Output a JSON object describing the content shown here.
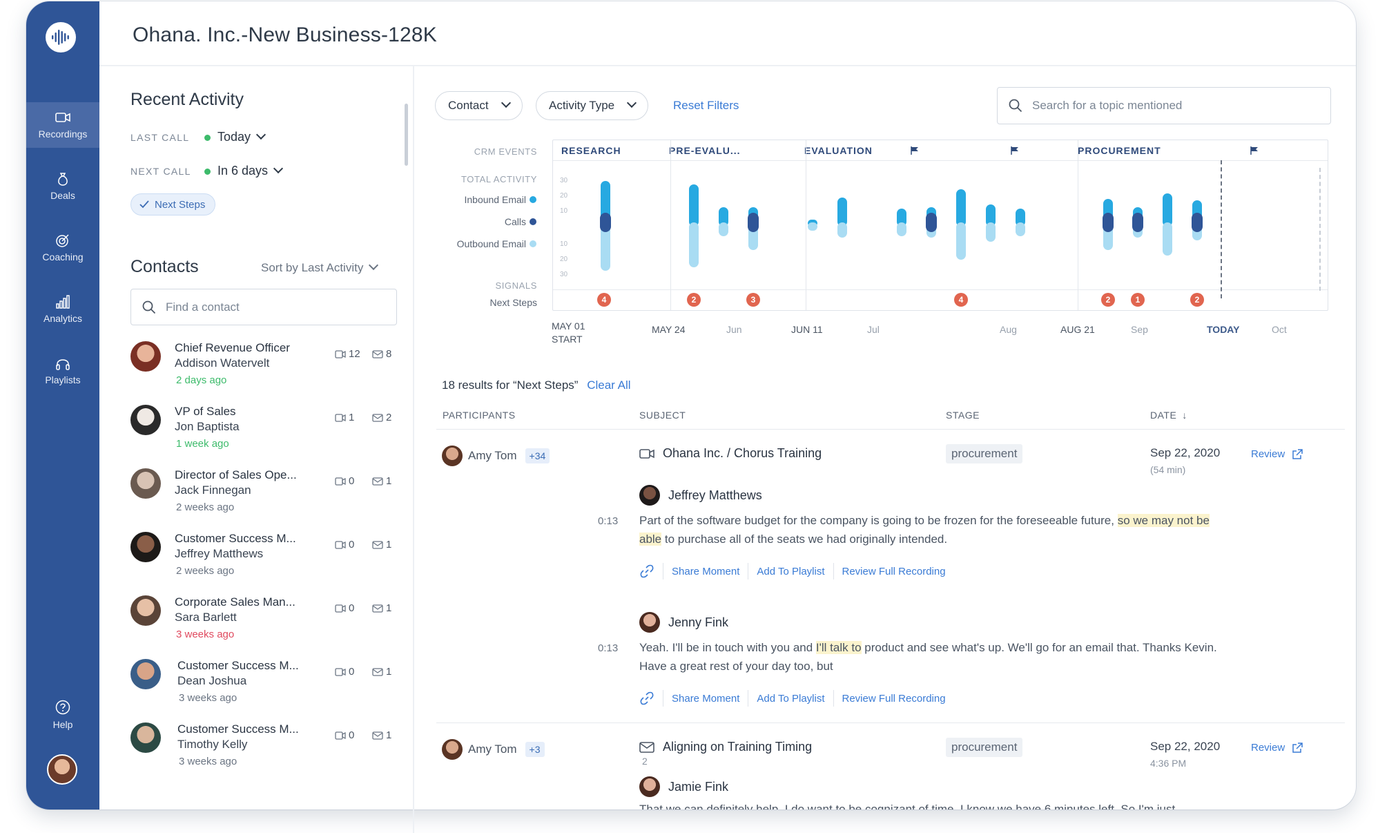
{
  "app": {
    "title": "Ohana. Inc.-New Business-128K"
  },
  "sidebar": {
    "items": [
      {
        "label": "Recordings",
        "icon": "video-camera-icon"
      },
      {
        "label": "Deals",
        "icon": "money-bag-icon"
      },
      {
        "label": "Coaching",
        "icon": "target-icon"
      },
      {
        "label": "Analytics",
        "icon": "bar-chart-icon"
      },
      {
        "label": "Playlists",
        "icon": "headphones-icon"
      }
    ],
    "help": "Help"
  },
  "recent_activity": {
    "title": "Recent Activity",
    "last_call_label": "LAST CALL",
    "last_call_value": "Today",
    "next_call_label": "NEXT CALL",
    "next_call_value": "In 6 days",
    "next_steps_pill": "Next Steps"
  },
  "contacts": {
    "title": "Contacts",
    "sort_label": "Sort by Last Activity",
    "search_placeholder": "Find a contact",
    "items": [
      {
        "role": "Chief Revenue Officer",
        "name": "Addison Watervelt",
        "when": "2 days ago",
        "calls": "12",
        "emails": "8"
      },
      {
        "role": "VP of Sales",
        "name": "Jon Baptista",
        "when": "1 week ago",
        "calls": "1",
        "emails": "2"
      },
      {
        "role": "Director of Sales Ope...",
        "name": "Jack Finnegan",
        "when": "2 weeks ago",
        "calls": "0",
        "emails": "1"
      },
      {
        "role": "Customer Success M...",
        "name": "Jeffrey Matthews",
        "when": "2 weeks ago",
        "calls": "0",
        "emails": "1"
      },
      {
        "role": "Corporate Sales Man...",
        "name": "Sara Barlett",
        "when": "3 weeks ago",
        "calls": "0",
        "emails": "1"
      },
      {
        "role": "Customer Success M...",
        "name": "Dean Joshua",
        "when": "3 weeks ago",
        "calls": "0",
        "emails": "1"
      },
      {
        "role": "Customer Success M...",
        "name": "Timothy Kelly",
        "when": "3 weeks ago",
        "calls": "0",
        "emails": "1"
      }
    ]
  },
  "filters": {
    "contact": "Contact",
    "activity_type": "Activity Type",
    "reset": "Reset Filters",
    "search_placeholder": "Search for a topic mentioned"
  },
  "timeline": {
    "crm_events": "CRM EVENTS",
    "total_activity": "TOTAL ACTIVITY",
    "inbound_email": "Inbound Email",
    "calls": "Calls",
    "outbound_email": "Outbound Email",
    "signals": "SIGNALS",
    "next_steps": "Next Steps",
    "stages": [
      "RESEARCH",
      "PRE-EVALU...",
      "EVALUATION",
      "PROCUREMENT"
    ],
    "y_ticks_up": [
      "30",
      "20",
      "10"
    ],
    "y_ticks_down": [
      "10",
      "20",
      "30"
    ],
    "badges": [
      "4",
      "2",
      "3",
      "4",
      "2",
      "1",
      "2"
    ],
    "axis": {
      "may01": "MAY 01",
      "start": "START",
      "may24": "MAY 24",
      "jun": "Jun",
      "jun11": "JUN 11",
      "jul": "Jul",
      "aug": "Aug",
      "aug21": "AUG 21",
      "sep": "Sep",
      "today": "TODAY",
      "oct": "Oct"
    },
    "colors": {
      "inbound": "#27a9e1",
      "calls": "#2f5597",
      "outbound": "#a9dcf3"
    }
  },
  "results": {
    "title": "18 results for “Next Steps”",
    "clear": "Clear All",
    "columns": {
      "participants": "PARTICIPANTS",
      "subject": "SUBJECT",
      "stage": "STAGE",
      "date": "DATE"
    },
    "rows": [
      {
        "participant": "Amy Tom",
        "more": "+34",
        "subject": "Ohana Inc. / Chorus Training",
        "stage": "procurement",
        "date": "Sep 22, 2020",
        "date_sub": "(54 min)",
        "review": "Review",
        "moments": [
          {
            "speaker": "Jeffrey Matthews",
            "time": "0:13",
            "text_a": "Part of the software budget for the company is going to be frozen for the foreseeable future,",
            "text_hl": "so we may not be able",
            "text_b": "to purchase all of the seats we had originally intended."
          },
          {
            "speaker": "Jenny Fink",
            "time": "0:13",
            "text_a": "Yeah. I'll be in touch with you and",
            "text_hl": "I'll talk to",
            "text_b": "product and see what's up. We'll go for an email that. Thanks Kevin. Have a great rest of your day too, but"
          }
        ],
        "actions": {
          "share": "Share Moment",
          "playlist": "Add To Playlist",
          "full": "Review Full Recording"
        }
      },
      {
        "participant": "Amy Tom",
        "more": "+3",
        "subject": "Aligning on Training Timing",
        "count": "2",
        "stage": "procurement",
        "date": "Sep 22, 2020",
        "date_sub": "4:36 PM",
        "review": "Review",
        "speaker": "Jamie Fink",
        "text": "That we can definitely help. I do want to be cognizant of time. I know we have 6 minutes left. So I'm just"
      }
    ]
  }
}
